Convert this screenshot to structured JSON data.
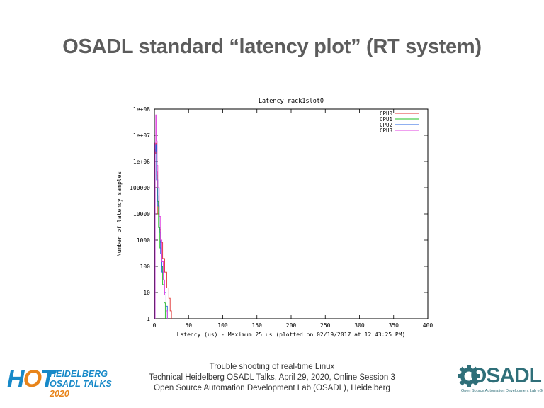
{
  "slide": {
    "title": "OSADL standard “latency plot” (RT system)"
  },
  "footer": {
    "line1": "Trouble shooting of real-time Linux",
    "line2": "Technical Heidelberg OSADL Talks, April 29, 2020, Online Session 3",
    "line3": "Open Source Automation Development Lab (OSADL), Heidelberg"
  },
  "logos": {
    "hot": {
      "letters_h": "H",
      "letters_o": "O",
      "letters_t": "T",
      "line1": "HEIDELBERG",
      "line2a": "OSADL TALKS",
      "line2b": "2020"
    },
    "osadl": {
      "word": "OSADL",
      "tagline": "Open Source Automation Development Lab eG"
    }
  },
  "colors": {
    "CPU0": "#e03030",
    "CPU1": "#20c020",
    "CPU2": "#2060e0",
    "CPU3": "#e040e0",
    "hot_blue": "#1789c8",
    "hot_orange": "#e8841a",
    "osadl_teal": "#2f6f79"
  },
  "chart_data": {
    "type": "line",
    "title": "Latency rack1slot0",
    "xlabel": "Latency (us) - Maximum 25 us (plotted on 02/19/2017 at 12:43:25 PM)",
    "ylabel": "Number of latency samples",
    "xlim": [
      0,
      400
    ],
    "ylim": [
      1,
      100000000
    ],
    "yscale": "log",
    "xticks": [
      0,
      50,
      100,
      150,
      200,
      250,
      300,
      350,
      400
    ],
    "ytick_labels": [
      "1",
      "10",
      "100",
      "1000",
      "10000",
      "100000",
      "1e+06",
      "1e+07",
      "1e+08"
    ],
    "legend_position": "top-right",
    "series": [
      {
        "name": "CPU0",
        "points": [
          [
            1,
            2000000
          ],
          [
            2,
            5000000
          ],
          [
            3,
            400000
          ],
          [
            4,
            50000
          ],
          [
            5,
            10000
          ],
          [
            7,
            2500
          ],
          [
            9,
            800
          ],
          [
            12,
            200
          ],
          [
            15,
            60
          ],
          [
            18,
            15
          ],
          [
            21,
            6
          ],
          [
            23,
            2
          ],
          [
            25,
            1
          ]
        ]
      },
      {
        "name": "CPU1",
        "points": [
          [
            1,
            3000000
          ],
          [
            2,
            4000000
          ],
          [
            3,
            300000
          ],
          [
            4,
            30000
          ],
          [
            6,
            3000
          ],
          [
            8,
            500
          ],
          [
            10,
            100
          ],
          [
            12,
            20
          ],
          [
            14,
            4
          ],
          [
            16,
            1
          ]
        ]
      },
      {
        "name": "CPU2",
        "points": [
          [
            1,
            2500000
          ],
          [
            2,
            4500000
          ],
          [
            3,
            200000
          ],
          [
            5,
            20000
          ],
          [
            7,
            2000
          ],
          [
            9,
            300
          ],
          [
            11,
            60
          ],
          [
            14,
            10
          ],
          [
            17,
            3
          ],
          [
            19,
            1
          ]
        ]
      },
      {
        "name": "CPU3",
        "points": [
          [
            1,
            5000000
          ],
          [
            2,
            60000000
          ],
          [
            3,
            6000000
          ],
          [
            4,
            700000
          ],
          [
            5,
            100000
          ],
          [
            7,
            8000
          ],
          [
            9,
            1000
          ],
          [
            11,
            150
          ],
          [
            13,
            30
          ],
          [
            15,
            8
          ],
          [
            17,
            2
          ],
          [
            19,
            1
          ]
        ]
      }
    ]
  }
}
